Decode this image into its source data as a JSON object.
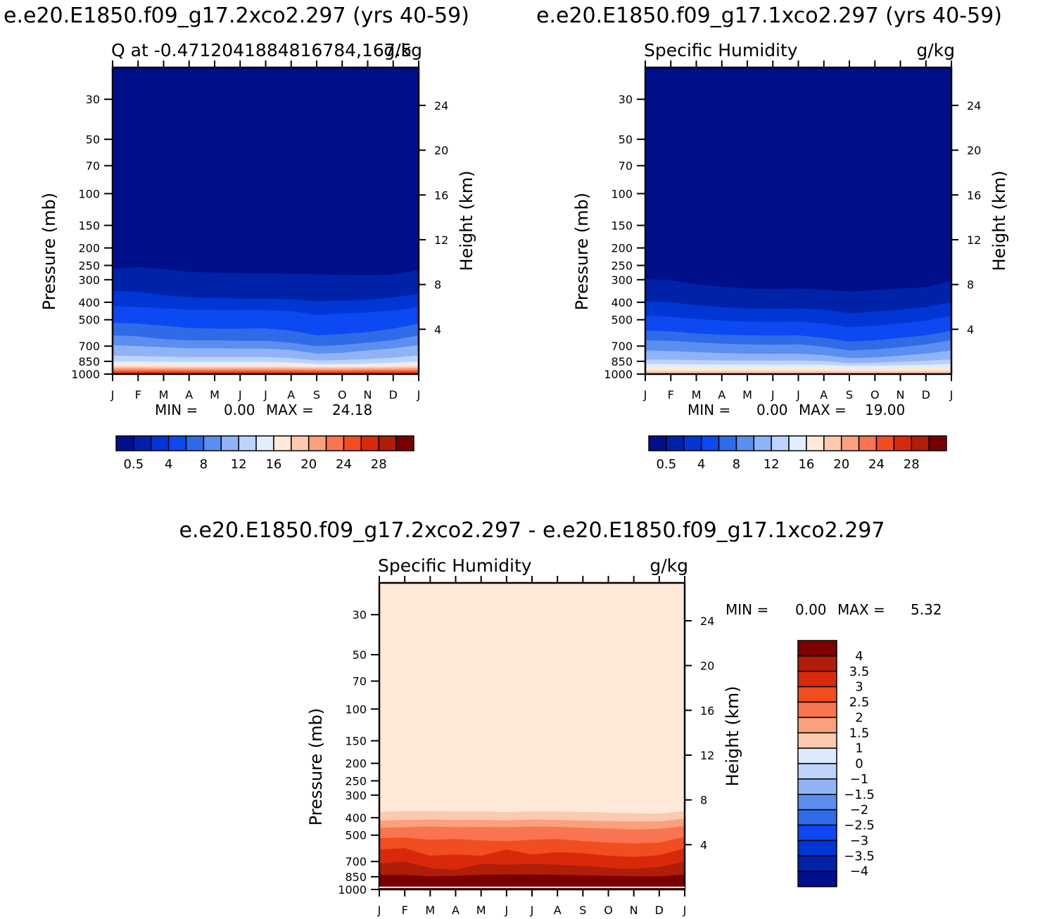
{
  "title_left": "e.e20.E1850.f09_g17.2xco2.297 (yrs 40-59)",
  "title_right": "e.e20.E1850.f09_g17.1xco2.297 (yrs 40-59)",
  "title_bottom": "e.e20.E1850.f09_g17.2xco2.297 - e.e20.E1850.f09_g17.1xco2.297",
  "palette_abs": [
    "#000f8a",
    "#0022a8",
    "#0036d4",
    "#0c49f2",
    "#2f6be6",
    "#5a8ef0",
    "#8fb3f6",
    "#bcd3fb",
    "#e2eefe",
    "#ffe9d8",
    "#fcc9ae",
    "#fba07c",
    "#f97451",
    "#f24d20",
    "#d82a0a",
    "#b01d08",
    "#7a0000"
  ],
  "palette_diff": [
    "#000f8a",
    "#0022a8",
    "#0036d4",
    "#0c49f2",
    "#2f6be6",
    "#5a8ef0",
    "#8fb3f6",
    "#bcd3fb",
    "#ddeafd",
    "#ffe9d8",
    "#fcc9ae",
    "#fba07c",
    "#f97451",
    "#f24d20",
    "#d82a0a",
    "#b01d08",
    "#7a0000"
  ],
  "chart_data": [
    {
      "type": "contour",
      "id": "left",
      "left_label": "Q at -0.4712041884816784,167.5",
      "right_label": "g/kg",
      "xlabel_months": [
        "J",
        "F",
        "M",
        "A",
        "M",
        "J",
        "J",
        "A",
        "S",
        "O",
        "N",
        "D",
        "J"
      ],
      "ylabel": "Pressure (mb)",
      "ylabel_right": "Height (km)",
      "pressure_ticks": [
        "30",
        "50",
        "70",
        "100",
        "150",
        "200",
        "250",
        "300",
        "400",
        "500",
        "700",
        "850",
        "1000"
      ],
      "height_ticks": [
        "24",
        "20",
        "16",
        "12",
        "8",
        "4"
      ],
      "min_label": "MIN =",
      "min_value": "0.00",
      "max_label": "MAX =",
      "max_value": "24.18",
      "colorbar_labels": [
        "0.5",
        "4",
        "8",
        "12",
        "16",
        "20",
        "24",
        "28"
      ],
      "contour_levels_mb": [
        [
          262,
          255,
          262,
          272,
          274,
          276,
          276,
          278,
          280,
          282,
          283,
          281,
          265
        ],
        [
          345,
          350,
          365,
          375,
          378,
          382,
          382,
          385,
          395,
          392,
          388,
          375,
          360
        ],
        [
          420,
          425,
          432,
          440,
          440,
          442,
          442,
          448,
          470,
          462,
          455,
          445,
          425
        ],
        [
          520,
          525,
          540,
          555,
          560,
          560,
          558,
          575,
          610,
          600,
          585,
          560,
          525
        ],
        [
          610,
          618,
          640,
          650,
          650,
          655,
          655,
          670,
          700,
          690,
          670,
          648,
          610
        ],
        [
          690,
          700,
          710,
          720,
          720,
          722,
          722,
          735,
          770,
          762,
          740,
          720,
          690
        ],
        [
          790,
          795,
          800,
          805,
          805,
          805,
          805,
          815,
          840,
          836,
          825,
          810,
          790
        ],
        [
          850,
          852,
          855,
          858,
          858,
          858,
          858,
          862,
          880,
          880,
          875,
          865,
          850
        ],
        [
          880,
          882,
          885,
          887,
          887,
          887,
          887,
          889,
          900,
          900,
          895,
          890,
          880
        ],
        [
          905,
          906,
          908,
          909,
          909,
          909,
          909,
          910,
          915,
          915,
          913,
          910,
          905
        ],
        [
          925,
          926,
          927,
          928,
          928,
          928,
          928,
          929,
          932,
          932,
          930,
          928,
          925
        ],
        [
          945,
          946,
          946,
          947,
          947,
          947,
          947,
          947,
          950,
          950,
          948,
          947,
          945
        ],
        [
          962,
          962,
          963,
          963,
          963,
          963,
          963,
          963,
          965,
          965,
          964,
          963,
          962
        ],
        [
          980,
          980,
          981,
          981,
          981,
          981,
          981,
          981,
          982,
          982,
          981,
          981,
          980
        ]
      ]
    },
    {
      "type": "contour",
      "id": "right",
      "left_label": "Specific Humidity",
      "right_label": "g/kg",
      "xlabel_months": [
        "J",
        "F",
        "M",
        "A",
        "M",
        "J",
        "J",
        "A",
        "S",
        "O",
        "N",
        "D",
        "J"
      ],
      "ylabel": "Pressure (mb)",
      "ylabel_right": "Height (km)",
      "pressure_ticks": [
        "30",
        "50",
        "70",
        "100",
        "150",
        "200",
        "250",
        "300",
        "400",
        "500",
        "700",
        "850",
        "1000"
      ],
      "height_ticks": [
        "24",
        "20",
        "16",
        "12",
        "8",
        "4"
      ],
      "min_label": "MIN =",
      "min_value": "0.00",
      "max_label": "MAX =",
      "max_value": "19.00",
      "colorbar_labels": [
        "0.5",
        "4",
        "8",
        "12",
        "16",
        "20",
        "24",
        "28"
      ],
      "contour_levels_mb": [
        [
          298,
          302,
          318,
          328,
          336,
          338,
          336,
          340,
          350,
          342,
          336,
          330,
          305
        ],
        [
          395,
          400,
          415,
          425,
          432,
          435,
          432,
          440,
          460,
          450,
          440,
          425,
          400
        ],
        [
          475,
          480,
          495,
          505,
          512,
          515,
          512,
          525,
          550,
          540,
          525,
          505,
          475
        ],
        [
          575,
          580,
          595,
          605,
          610,
          612,
          610,
          630,
          660,
          650,
          630,
          610,
          575
        ],
        [
          650,
          655,
          668,
          678,
          685,
          688,
          685,
          705,
          740,
          730,
          710,
          685,
          650
        ],
        [
          740,
          745,
          755,
          765,
          770,
          772,
          770,
          785,
          815,
          810,
          790,
          770,
          740
        ],
        [
          830,
          832,
          836,
          840,
          842,
          843,
          842,
          848,
          870,
          866,
          855,
          843,
          830
        ],
        [
          880,
          882,
          884,
          886,
          887,
          887,
          887,
          889,
          900,
          900,
          895,
          890,
          880
        ],
        [
          920,
          920,
          921,
          922,
          922,
          922,
          922,
          923,
          928,
          928,
          926,
          923,
          920
        ],
        [
          958,
          958,
          958,
          959,
          959,
          959,
          959,
          959,
          962,
          962,
          961,
          959,
          958
        ]
      ]
    },
    {
      "type": "contour",
      "id": "bottom",
      "left_label": "Specific Humidity",
      "right_label": "g/kg",
      "xlabel_months": [
        "J",
        "F",
        "M",
        "A",
        "M",
        "J",
        "J",
        "A",
        "S",
        "O",
        "N",
        "D",
        "J"
      ],
      "ylabel": "Pressure (mb)",
      "ylabel_right": "Height (km)",
      "pressure_ticks": [
        "30",
        "50",
        "70",
        "100",
        "150",
        "200",
        "250",
        "300",
        "400",
        "500",
        "700",
        "850",
        "1000"
      ],
      "height_ticks": [
        "24",
        "20",
        "16",
        "12",
        "8",
        "4"
      ],
      "min_label": "MIN =",
      "min_value": "0.00",
      "max_label": "MAX =",
      "max_value": "5.32",
      "colorbar_labels": [
        "4",
        "3.5",
        "3",
        "2.5",
        "2",
        "1.5",
        "1",
        "0",
        "−1",
        "−1.5",
        "−2",
        "−2.5",
        "−3",
        "−3.5",
        "−4"
      ],
      "contour_levels_mb": [
        [
          372,
          368,
          368,
          370,
          370,
          372,
          370,
          370,
          372,
          375,
          378,
          380,
          368
        ],
        [
          415,
          412,
          410,
          412,
          412,
          414,
          410,
          412,
          415,
          418,
          420,
          420,
          405
        ],
        [
          455,
          452,
          448,
          452,
          450,
          452,
          448,
          450,
          455,
          460,
          465,
          462,
          445
        ],
        [
          520,
          515,
          530,
          525,
          535,
          540,
          530,
          525,
          540,
          550,
          555,
          550,
          510
        ],
        [
          600,
          590,
          650,
          640,
          650,
          600,
          640,
          620,
          630,
          650,
          660,
          645,
          590
        ],
        [
          720,
          700,
          760,
          780,
          720,
          730,
          720,
          730,
          740,
          760,
          770,
          750,
          700
        ],
        [
          830,
          830,
          845,
          840,
          830,
          825,
          825,
          830,
          835,
          840,
          845,
          845,
          825
        ],
        [
          880,
          880,
          890,
          890,
          880,
          875,
          875,
          880,
          885,
          888,
          890,
          890,
          875
        ],
        [
          930,
          930,
          935,
          932,
          925,
          925,
          925,
          925,
          930,
          932,
          935,
          933,
          925
        ]
      ]
    }
  ]
}
